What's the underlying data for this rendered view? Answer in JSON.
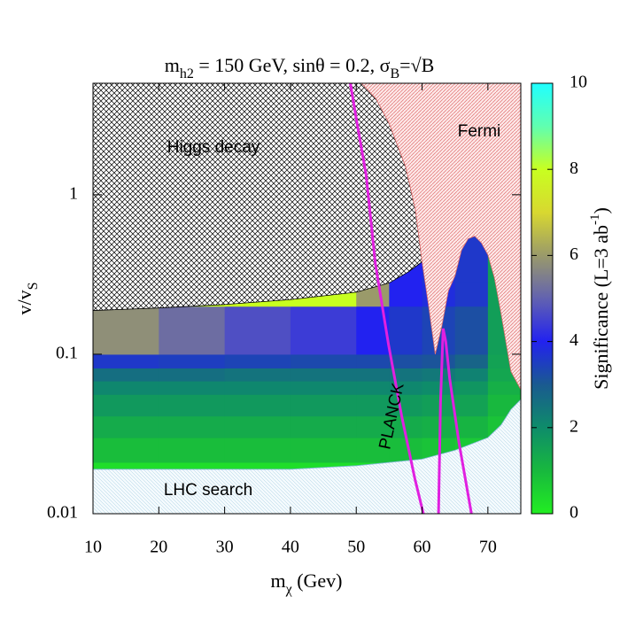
{
  "chart_data": {
    "type": "heatmap",
    "title": [
      {
        "text": "m"
      },
      {
        "text": "h",
        "sub": 1
      },
      {
        "text": "2",
        "sub": 2
      },
      {
        "text": " = 150 GeV, sin"
      },
      {
        "text": "θ"
      },
      {
        "text": " = 0.2, σ"
      },
      {
        "text": "B",
        "sub": 1
      },
      {
        "text": "=√B"
      }
    ],
    "x_label": [
      {
        "text": "m"
      },
      {
        "text": "χ",
        "sub": 1
      },
      {
        "text": " (Gev)"
      }
    ],
    "y_label": [
      {
        "text": "v/v"
      },
      {
        "text": "S",
        "sub": 1
      }
    ],
    "colorbar_label": [
      {
        "text": "Significance (L=3 ab"
      },
      {
        "text": "-1",
        "sup": 1
      },
      {
        "text": ")"
      }
    ],
    "xlim": [
      10,
      75
    ],
    "xticks": [
      10,
      20,
      30,
      40,
      50,
      60,
      70
    ],
    "ylim": [
      0.01,
      5
    ],
    "yticks": [
      0.01,
      0.1,
      1
    ],
    "log_y": true,
    "x_bins": [
      10,
      20,
      30,
      40,
      50,
      55,
      60,
      65,
      70,
      75
    ],
    "y_bins": [
      0.01,
      0.021,
      0.03,
      0.041,
      0.056,
      0.068,
      0.082,
      0.1,
      0.2,
      0.28,
      0.6
    ],
    "z": [
      [
        0.3,
        0.3,
        0.3,
        0.3,
        0.3,
        0.3,
        0.3,
        0.3,
        0.3
      ],
      [
        0.9,
        0.9,
        0.9,
        0.9,
        0.9,
        0.9,
        0.8,
        0.7,
        0.5
      ],
      [
        1.3,
        1.3,
        1.3,
        1.3,
        1.3,
        1.3,
        1.2,
        1.1,
        0.8
      ],
      [
        1.7,
        1.7,
        1.7,
        1.7,
        1.7,
        1.7,
        1.6,
        1.5,
        1.0
      ],
      [
        2.1,
        2.1,
        2.1,
        2.1,
        2.1,
        2.1,
        2.0,
        1.8,
        1.2
      ],
      [
        2.6,
        2.6,
        2.5,
        2.5,
        2.5,
        2.5,
        2.4,
        2.2,
        1.4
      ],
      [
        3.6,
        3.5,
        3.4,
        3.3,
        3.3,
        3.2,
        3.1,
        2.8,
        1.5
      ],
      [
        5.8,
        5.2,
        4.7,
        4.4,
        4.0,
        3.6,
        3.4,
        3.2,
        1.6
      ],
      [
        8.0,
        8.0,
        8.0,
        8.0,
        6.0,
        4.0,
        3.8,
        3.6,
        1.6
      ],
      [
        8.0,
        8.0,
        8.0,
        8.0,
        6.0,
        4.0,
        3.7,
        3.6,
        1.6
      ]
    ],
    "zlim": [
      0,
      10
    ],
    "zticks": [
      0,
      2,
      4,
      6,
      8,
      10
    ],
    "colormap": [
      "#22ee22",
      "#18b83e",
      "#0e8c6a",
      "#1a5a90",
      "#2222f0",
      "#6262b0",
      "#9a9a6a",
      "#d8d830",
      "#c8ff20",
      "#60ffb0",
      "#20ffff"
    ],
    "regions": [
      {
        "name": "Higgs decay",
        "fill": "cross",
        "color": "#000000",
        "close": "top-left",
        "x": [
          10,
          20,
          30,
          40,
          50,
          55,
          58,
          60,
          59,
          57.5,
          55,
          53,
          50.8
        ],
        "y": [
          0.188,
          0.195,
          0.205,
          0.22,
          0.245,
          0.28,
          0.33,
          0.38,
          0.8,
          1.5,
          2.8,
          4,
          5
        ]
      },
      {
        "name": "Fermi",
        "fill": "diag",
        "color": "#e07070",
        "close": "top-right",
        "x": [
          50.8,
          53,
          55,
          57.5,
          59,
          60,
          61,
          62,
          63,
          64,
          65,
          66,
          67,
          68,
          69,
          70,
          71,
          72,
          73.5,
          75
        ],
        "y": [
          5,
          4,
          2.8,
          1.5,
          0.8,
          0.38,
          0.2,
          0.1,
          0.15,
          0.25,
          0.31,
          0.45,
          0.53,
          0.55,
          0.5,
          0.42,
          0.3,
          0.18,
          0.078,
          0.06
        ]
      },
      {
        "name": "LHC search",
        "fill": "dots",
        "color": "#80b8d8",
        "close": "bottom",
        "x": [
          10,
          40,
          50,
          60,
          65,
          70,
          72,
          73.5,
          75
        ],
        "y": [
          0.019,
          0.019,
          0.02,
          0.022,
          0.025,
          0.03,
          0.036,
          0.045,
          0.052
        ]
      }
    ],
    "lines": [
      {
        "name": "PLANCK",
        "color": "#e020e0",
        "x": [
          49.1,
          50,
          51.5,
          52.9,
          54.9,
          56.9,
          58.9,
          60.2,
          null,
          62.5,
          62.8,
          63.2,
          63.6,
          64.2,
          65.6,
          67.5
        ],
        "y": [
          5,
          3,
          1.33,
          0.37,
          0.115,
          0.041,
          0.0166,
          0.01,
          null,
          0.01,
          0.05,
          0.145,
          0.12,
          0.07,
          0.028,
          0.01
        ]
      }
    ]
  }
}
